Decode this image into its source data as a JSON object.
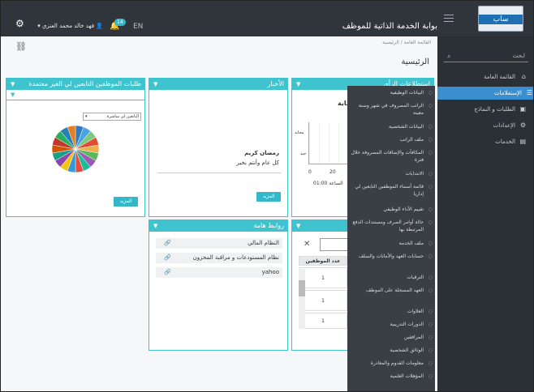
{
  "header": {
    "portal_title": "بوابة الخدمة الذاتية للموظف",
    "user_name": "فهد خالد محمد العنزي",
    "notif_count": "14",
    "lang": "EN",
    "logo_text": "ساب"
  },
  "sidebar": {
    "search_placeholder": "ابحث",
    "items": [
      {
        "label": "القائمة العامة"
      },
      {
        "label": "الإستعلامات"
      },
      {
        "label": "الطلبات و النماذج"
      },
      {
        "label": "الإعدادات"
      },
      {
        "label": "الخدمات"
      }
    ]
  },
  "breadcrumb": {
    "home": "الرئيسية",
    "sep": "/",
    "current": "القائمة العامة"
  },
  "page": {
    "title": "الرئيسية"
  },
  "cards": {
    "pending_requests": {
      "title": "طلبات الموظفين التابعين لي الغير معتمدة",
      "filter_value": "التابعين لي مباشرة",
      "more": "المزيد"
    },
    "news": {
      "title": "الأخبار",
      "greeting": "رمضان كريم",
      "body": "كل عام وأنتم بخير",
      "more": "المزيد"
    },
    "stats": {
      "title": "إستطلاعات الرأي",
      "subtitle": "ماية",
      "axis_y1": "محايد",
      "axis_y2": "جيد",
      "x0": "0",
      "x1": "20",
      "time": "الساعة 01:00"
    },
    "links": {
      "title": "روابط هامة",
      "items": [
        "النظام المالي",
        "نظام المستودعات و مراقبة المخزون",
        "yahoo"
      ]
    },
    "employees": {
      "col_count": "عدد الموظفين",
      "rows": [
        "1",
        "1",
        "1"
      ]
    }
  },
  "menu": {
    "items": [
      "البيانات الوظيفية",
      "الراتب المصروف في شهر وسنة معينة",
      "البيانات الشخصية",
      "ملف الراتب",
      "المكافآت والإضافات المصروفة خلال فترة",
      "الانتدابات",
      "قائمة أسماء الموظفين التابعين لي إداريا",
      "تقييم الأداء الوظيفي",
      "حالة أوامر الصرف ومستندات الدفع المرتبطة بها",
      "ملف الخدمة",
      "حسابات العهد والأمانات والسلف",
      "الترقيات",
      "العهد المسجلة على الموظف",
      "العلاوات",
      "الدورات التدريبية",
      "المرافقين",
      "الوثائق الشخصية",
      "معلومات القدوم والمغادرة",
      "المؤهلات العلمية"
    ]
  },
  "pie_colors": [
    "#2f7bbf",
    "#4aa3df",
    "#7fc97f",
    "#e34a33",
    "#f0ad4e",
    "#5cb85c",
    "#9b59b6",
    "#1abc9c",
    "#e74c3c",
    "#3498db",
    "#f1c40f",
    "#8e44ad",
    "#16a085",
    "#d35400",
    "#c0392b",
    "#27ae60",
    "#2980b9",
    "#e67e22"
  ]
}
